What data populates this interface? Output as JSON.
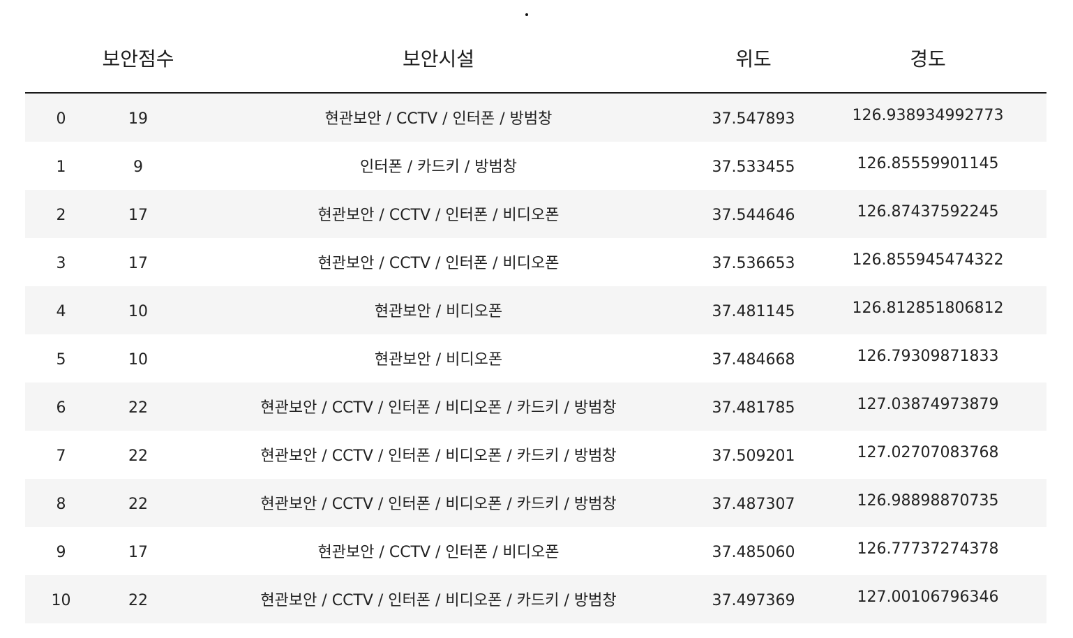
{
  "table": {
    "columns": {
      "index": "",
      "score": "보안점수",
      "facilities": "보안시설",
      "latitude": "위도",
      "longitude": "경도"
    },
    "rows": [
      {
        "index": "0",
        "score": "19",
        "facilities": "현관보안 / CCTV / 인터폰 / 방범창",
        "latitude": "37.547893",
        "longitude": "126.938934992773"
      },
      {
        "index": "1",
        "score": "9",
        "facilities": "인터폰 / 카드키 / 방범창",
        "latitude": "37.533455",
        "longitude": "126.85559901145"
      },
      {
        "index": "2",
        "score": "17",
        "facilities": "현관보안 / CCTV / 인터폰 / 비디오폰",
        "latitude": "37.544646",
        "longitude": "126.87437592245"
      },
      {
        "index": "3",
        "score": "17",
        "facilities": "현관보안 / CCTV / 인터폰 / 비디오폰",
        "latitude": "37.536653",
        "longitude": "126.855945474322"
      },
      {
        "index": "4",
        "score": "10",
        "facilities": "현관보안 / 비디오폰",
        "latitude": "37.481145",
        "longitude": "126.812851806812"
      },
      {
        "index": "5",
        "score": "10",
        "facilities": "현관보안 / 비디오폰",
        "latitude": "37.484668",
        "longitude": "126.79309871833"
      },
      {
        "index": "6",
        "score": "22",
        "facilities": "현관보안 / CCTV / 인터폰 / 비디오폰 / 카드키 / 방범창",
        "latitude": "37.481785",
        "longitude": "127.03874973879"
      },
      {
        "index": "7",
        "score": "22",
        "facilities": "현관보안 / CCTV / 인터폰 / 비디오폰 / 카드키 / 방범창",
        "latitude": "37.509201",
        "longitude": "127.02707083768"
      },
      {
        "index": "8",
        "score": "22",
        "facilities": "현관보안 / CCTV / 인터폰 / 비디오폰 / 카드키 / 방범창",
        "latitude": "37.487307",
        "longitude": "126.98898870735"
      },
      {
        "index": "9",
        "score": "17",
        "facilities": "현관보안 / CCTV / 인터폰 / 비디오폰",
        "latitude": "37.485060",
        "longitude": "126.77737274378"
      },
      {
        "index": "10",
        "score": "22",
        "facilities": "현관보안 / CCTV / 인터폰 / 비디오폰 / 카드키 / 방범창",
        "latitude": "37.497369",
        "longitude": "127.00106796346"
      }
    ]
  }
}
